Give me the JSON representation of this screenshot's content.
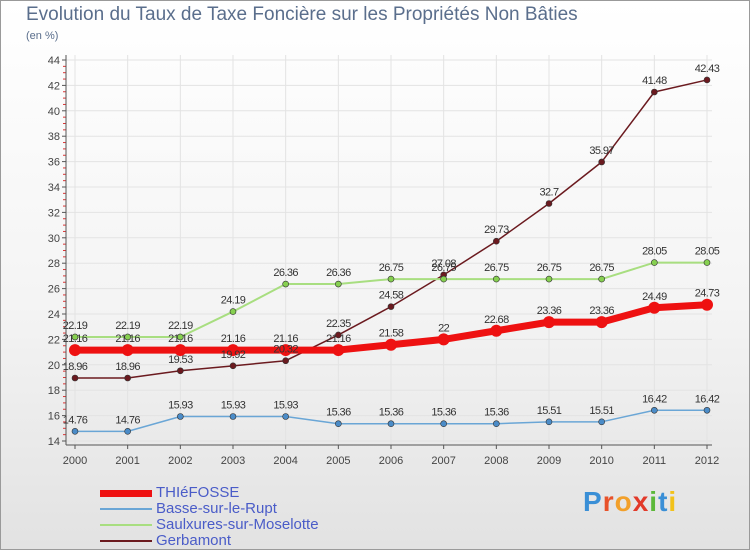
{
  "title": "Evolution du Taux de Taxe Foncière sur les Propriétés Non Bâties",
  "subtitle": "(en %)",
  "logo": {
    "letters": [
      "P",
      "r",
      "o",
      "x",
      "i",
      "t",
      "i"
    ],
    "colors": [
      "#3a8fd6",
      "#e8522a",
      "#f2a02a",
      "#e23a2a",
      "#5cb83a",
      "#3a8fd6",
      "#f2c21a"
    ]
  },
  "chart_data": {
    "type": "line",
    "x": [
      2000,
      2001,
      2002,
      2003,
      2004,
      2005,
      2006,
      2007,
      2008,
      2009,
      2010,
      2011,
      2012
    ],
    "ylim": [
      14,
      44
    ],
    "yticks": [
      14,
      16,
      18,
      20,
      22,
      24,
      26,
      28,
      30,
      32,
      34,
      36,
      38,
      40,
      42,
      44
    ],
    "grid": true,
    "series": [
      {
        "name": "Gerbamont",
        "color": "#6b1a1f",
        "dot": "#6b1a1f",
        "width": 1.5,
        "marker": 3,
        "values": [
          18.96,
          18.96,
          19.53,
          19.92,
          20.32,
          22.35,
          24.58,
          27.08,
          29.73,
          32.7,
          35.97,
          41.48,
          42.43
        ],
        "labels": [
          "18.96",
          "18.96",
          "19.53",
          "19.92",
          "20.32",
          "22.35",
          "24.58",
          "27.08",
          "29.73",
          "32.7",
          "35.97",
          "41.48",
          "42.43"
        ]
      },
      {
        "name": "Saulxures-sur-Moselotte",
        "color": "#a8de80",
        "dot": "#86d050",
        "width": 2,
        "marker": 3,
        "values": [
          22.19,
          22.19,
          22.19,
          24.19,
          26.36,
          26.36,
          26.75,
          26.75,
          26.75,
          26.75,
          26.75,
          28.05,
          28.05
        ],
        "labels": [
          "22.19",
          "22.19",
          "22.19",
          "24.19",
          "26.36",
          "26.36",
          "26.75",
          "26.75",
          "26.75",
          "26.75",
          "26.75",
          "28.05",
          "28.05"
        ]
      },
      {
        "name": "Basse-sur-le-Rupt",
        "color": "#6aa6d6",
        "dot": "#4b8cc8",
        "width": 1.5,
        "marker": 3,
        "values": [
          14.76,
          14.76,
          15.93,
          15.93,
          15.93,
          15.36,
          15.36,
          15.36,
          15.36,
          15.51,
          15.51,
          16.42,
          16.42
        ],
        "labels": [
          "14.76",
          "14.76",
          "15.93",
          "15.93",
          "15.93",
          "15.36",
          "15.36",
          "15.36",
          "15.36",
          "15.51",
          "15.51",
          "16.42",
          "16.42"
        ]
      },
      {
        "name": "THIéFOSSE",
        "color": "#ee1111",
        "dot": "#ee1111",
        "width": 7,
        "marker": 6,
        "values": [
          21.16,
          21.16,
          21.16,
          21.16,
          21.16,
          21.16,
          21.58,
          22,
          22.68,
          23.36,
          23.36,
          24.49,
          24.73
        ],
        "labels": [
          "21.16",
          "21.16",
          "21.16",
          "21.16",
          "21.16",
          "21.16",
          "21.58",
          "22",
          "22.68",
          "23.36",
          "23.36",
          "24.49",
          "24.73"
        ]
      }
    ],
    "legend": [
      "THIéFOSSE",
      "Basse-sur-le-Rupt",
      "Saulxures-sur-Moselotte",
      "Gerbamont"
    ]
  }
}
